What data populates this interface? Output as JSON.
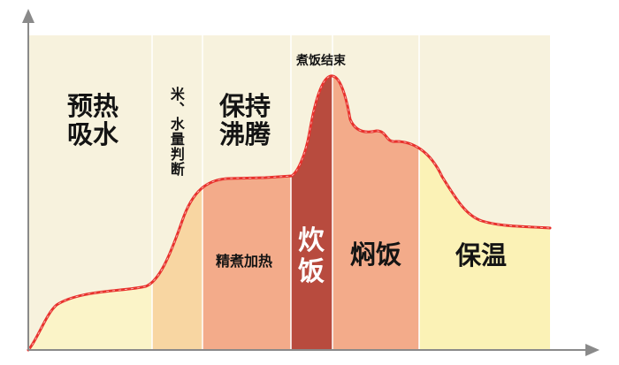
{
  "phases": {
    "preheat": "预热\n吸水",
    "rice_water_ratio": "米、水量判断",
    "keep_boiling": "保持\n沸腾",
    "intensive_heating": "精煮加热",
    "cooking_end": "煮饭结束",
    "steam_dry": "炊\n饭",
    "braise": "焖饭",
    "keep_warm": "保温"
  },
  "colors": {
    "background_band": "#f7f2dd",
    "curve": "#e8322d",
    "preheat_fill": "#fbf4c8",
    "judge_fill": "#f8d6a2",
    "boil_fill": "#f3ab8a",
    "steam_fill": "#b84b3e",
    "keep_warm_fill": "#fbf2b6",
    "axis": "#8a8a8a"
  }
}
